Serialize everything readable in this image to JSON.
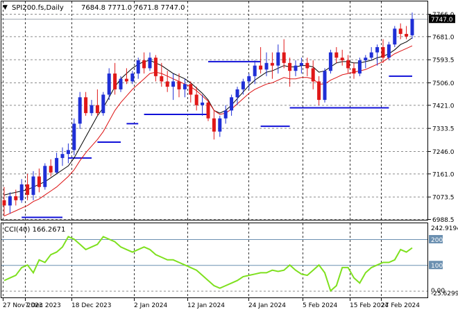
{
  "header": {
    "symbol": "SPI200.fs,Daily",
    "ohlc": "7684.8 7771.0 7671.8 7747.0",
    "triangle": "▼"
  },
  "price_axis": {
    "labels": [
      "7766.0",
      "7681.0",
      "7593.5",
      "7506.0",
      "7421.0",
      "7333.5",
      "7246.0",
      "7161.0",
      "7073.5",
      "6988.5"
    ],
    "current_price": "7747.0"
  },
  "indicator": {
    "title": "CCI(40) 166.2671",
    "axis_labels": [
      "242.9194",
      "200",
      "100",
      "0.00",
      "-25.6299"
    ]
  },
  "date_axis": {
    "labels": [
      "27 Nov 2023",
      "7 Dec 2023",
      "18 Dec 2023",
      "2 Jan 2024",
      "12 Jan 2024",
      "24 Jan 2024",
      "5 Feb 2024",
      "15 Feb 2024",
      "27 Feb 2024"
    ]
  },
  "colors": {
    "bull": "#1f2fd6",
    "bear": "#e01818",
    "grid": "#8a8a8a",
    "ma_red": "#dd1111",
    "ma_black": "#000000",
    "stop": "#1010d8",
    "cci": "#7ee01e",
    "level": "#6a8fb0"
  },
  "chart_data": [
    {
      "type": "candlestick",
      "title": "SPI200.fs,Daily",
      "y_ticks": [
        7766.0,
        7681.0,
        7593.5,
        7506.0,
        7421.0,
        7333.5,
        7246.0,
        7161.0,
        7073.5,
        6988.5
      ],
      "ylim": [
        6988.5,
        7766.0
      ],
      "current": 7747.0,
      "candles": [
        [
          7060,
          7110,
          7000,
          7040
        ],
        [
          7040,
          7090,
          7010,
          7075
        ],
        [
          7075,
          7100,
          7040,
          7060
        ],
        [
          7060,
          7140,
          7050,
          7120
        ],
        [
          7120,
          7160,
          7060,
          7080
        ],
        [
          7080,
          7170,
          7060,
          7150
        ],
        [
          7150,
          7180,
          7090,
          7110
        ],
        [
          7110,
          7200,
          7100,
          7190
        ],
        [
          7190,
          7215,
          7150,
          7165
        ],
        [
          7165,
          7240,
          7160,
          7220
        ],
        [
          7220,
          7260,
          7190,
          7235
        ],
        [
          7235,
          7275,
          7200,
          7250
        ],
        [
          7250,
          7370,
          7230,
          7350
        ],
        [
          7350,
          7470,
          7330,
          7450
        ],
        [
          7450,
          7470,
          7380,
          7390
        ],
        [
          7390,
          7440,
          7380,
          7420
        ],
        [
          7420,
          7480,
          7380,
          7390
        ],
        [
          7390,
          7470,
          7380,
          7460
        ],
        [
          7460,
          7560,
          7440,
          7540
        ],
        [
          7540,
          7580,
          7460,
          7480
        ],
        [
          7480,
          7530,
          7470,
          7520
        ],
        [
          7520,
          7560,
          7500,
          7510
        ],
        [
          7510,
          7550,
          7500,
          7540
        ],
        [
          7540,
          7600,
          7520,
          7590
        ],
        [
          7590,
          7620,
          7540,
          7560
        ],
        [
          7560,
          7620,
          7550,
          7600
        ],
        [
          7600,
          7610,
          7510,
          7530
        ],
        [
          7530,
          7580,
          7490,
          7510
        ],
        [
          7510,
          7550,
          7470,
          7490
        ],
        [
          7490,
          7540,
          7440,
          7510
        ],
        [
          7510,
          7540,
          7450,
          7480
        ],
        [
          7480,
          7520,
          7450,
          7500
        ],
        [
          7500,
          7510,
          7430,
          7460
        ],
        [
          7460,
          7490,
          7400,
          7420
        ],
        [
          7420,
          7460,
          7380,
          7430
        ],
        [
          7430,
          7440,
          7360,
          7370
        ],
        [
          7370,
          7400,
          7290,
          7320
        ],
        [
          7320,
          7380,
          7300,
          7370
        ],
        [
          7370,
          7420,
          7350,
          7400
        ],
        [
          7400,
          7460,
          7380,
          7450
        ],
        [
          7450,
          7490,
          7420,
          7480
        ],
        [
          7480,
          7520,
          7460,
          7510
        ],
        [
          7510,
          7540,
          7480,
          7530
        ],
        [
          7530,
          7590,
          7500,
          7570
        ],
        [
          7570,
          7640,
          7540,
          7555
        ],
        [
          7555,
          7620,
          7530,
          7580
        ],
        [
          7580,
          7620,
          7520,
          7570
        ],
        [
          7570,
          7650,
          7540,
          7620
        ],
        [
          7620,
          7670,
          7560,
          7580
        ],
        [
          7580,
          7600,
          7490,
          7550
        ],
        [
          7550,
          7590,
          7530,
          7570
        ],
        [
          7570,
          7600,
          7540,
          7580
        ],
        [
          7580,
          7600,
          7530,
          7560
        ],
        [
          7560,
          7590,
          7480,
          7510
        ],
        [
          7510,
          7530,
          7420,
          7440
        ],
        [
          7440,
          7560,
          7430,
          7550
        ],
        [
          7550,
          7630,
          7540,
          7620
        ],
        [
          7620,
          7640,
          7580,
          7600
        ],
        [
          7600,
          7630,
          7570,
          7590
        ],
        [
          7590,
          7610,
          7540,
          7560
        ],
        [
          7560,
          7580,
          7520,
          7540
        ],
        [
          7540,
          7600,
          7530,
          7590
        ],
        [
          7590,
          7610,
          7560,
          7600
        ],
        [
          7600,
          7640,
          7590,
          7620
        ],
        [
          7620,
          7650,
          7570,
          7640
        ],
        [
          7640,
          7670,
          7580,
          7600
        ],
        [
          7600,
          7660,
          7590,
          7650
        ],
        [
          7650,
          7720,
          7640,
          7710
        ],
        [
          7710,
          7730,
          7670,
          7690
        ],
        [
          7690,
          7720,
          7670,
          7680
        ],
        [
          7684.8,
          7771.0,
          7671.8,
          7747.0
        ]
      ],
      "ma_red": [
        7000,
        7010,
        7020,
        7030,
        7040,
        7055,
        7065,
        7080,
        7095,
        7110,
        7130,
        7150,
        7175,
        7210,
        7240,
        7265,
        7290,
        7320,
        7360,
        7400,
        7430,
        7455,
        7480,
        7500,
        7520,
        7540,
        7545,
        7540,
        7530,
        7520,
        7510,
        7500,
        7490,
        7475,
        7455,
        7435,
        7400,
        7385,
        7390,
        7405,
        7425,
        7445,
        7465,
        7480,
        7490,
        7500,
        7505,
        7515,
        7525,
        7520,
        7520,
        7525,
        7525,
        7520,
        7500,
        7500,
        7515,
        7525,
        7535,
        7540,
        7545,
        7550,
        7555,
        7565,
        7575,
        7585,
        7600,
        7615,
        7625,
        7635,
        7645
      ],
      "ma_black": [
        7080,
        7085,
        7090,
        7095,
        7100,
        7110,
        7120,
        7130,
        7145,
        7160,
        7175,
        7190,
        7220,
        7260,
        7300,
        7340,
        7380,
        7410,
        7450,
        7490,
        7520,
        7540,
        7560,
        7575,
        7585,
        7590,
        7580,
        7570,
        7555,
        7540,
        7530,
        7520,
        7505,
        7485,
        7465,
        7440,
        7400,
        7390,
        7400,
        7420,
        7445,
        7470,
        7495,
        7515,
        7530,
        7545,
        7550,
        7560,
        7570,
        7565,
        7565,
        7570,
        7570,
        7565,
        7545,
        7550,
        7565,
        7580,
        7585,
        7585,
        7580,
        7580,
        7585,
        7590,
        7600,
        7605,
        7615,
        7630,
        7650,
        7660,
        7675
      ],
      "stop_segments": [
        {
          "from": 3,
          "to": 10,
          "value": 6995
        },
        {
          "from": 11,
          "to": 15,
          "value": 7220
        },
        {
          "from": 16,
          "to": 20,
          "value": 7280
        },
        {
          "from": 21,
          "to": 23,
          "value": 7350
        },
        {
          "from": 24,
          "to": 35,
          "value": 7385
        },
        {
          "from": 35,
          "to": 44,
          "value": 7585
        },
        {
          "from": 44,
          "to": 49,
          "value": 7340
        },
        {
          "from": 49,
          "to": 66,
          "value": 7410
        },
        {
          "from": 66,
          "to": 70,
          "value": 7530
        }
      ]
    },
    {
      "type": "line",
      "title": "CCI(40) 166.2671",
      "ylim": [
        -25.6299,
        242.9194
      ],
      "levels": [
        200,
        100
      ],
      "values": [
        40,
        50,
        60,
        90,
        100,
        70,
        120,
        110,
        140,
        150,
        170,
        210,
        200,
        180,
        160,
        170,
        180,
        210,
        200,
        190,
        170,
        160,
        150,
        160,
        170,
        160,
        140,
        130,
        120,
        120,
        110,
        100,
        90,
        80,
        60,
        40,
        20,
        10,
        20,
        30,
        40,
        55,
        60,
        65,
        70,
        70,
        80,
        75,
        80,
        100,
        80,
        65,
        60,
        80,
        100,
        70,
        0,
        20,
        90,
        90,
        50,
        30,
        70,
        90,
        100,
        110,
        110,
        120,
        160,
        150,
        166.27
      ]
    }
  ]
}
